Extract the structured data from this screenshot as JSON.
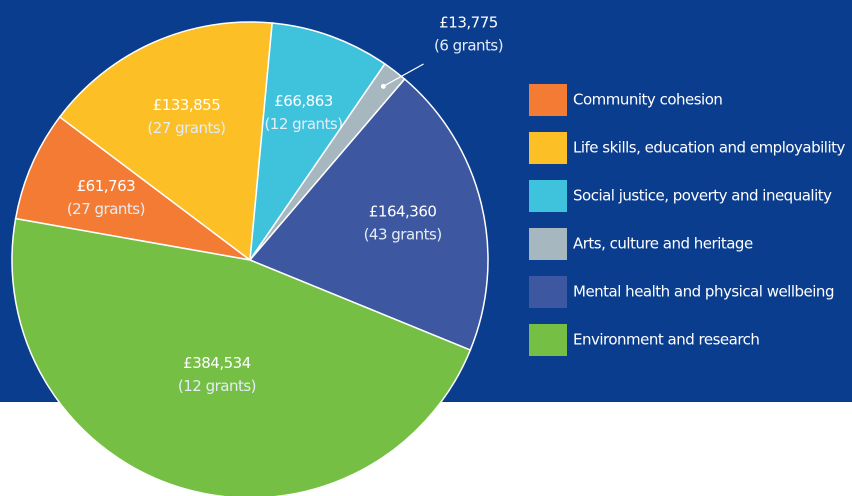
{
  "chart_data": {
    "type": "pie",
    "categories": [
      "Community cohesion",
      "Life skills, education and employability",
      "Social justice, poverty and inequality",
      "Arts, culture and heritage",
      "Mental health and physical wellbeing",
      "Environment and research"
    ],
    "values": [
      61763,
      133855,
      66863,
      13775,
      164360,
      384534
    ],
    "value_labels": [
      "£61,763",
      "£133,855",
      "£66,863",
      "£13,775",
      "£164,360",
      "£384,534"
    ],
    "grant_labels": [
      "(27 grants)",
      "(27 grants)",
      "(12 grants)",
      "(6 grants)",
      "(43 grants)",
      "(12 grants)"
    ],
    "colors": [
      "#f47b33",
      "#fcbf26",
      "#3fc2dc",
      "#a6b7c0",
      "#3d58a0",
      "#74bf44"
    ],
    "legend": "right"
  }
}
